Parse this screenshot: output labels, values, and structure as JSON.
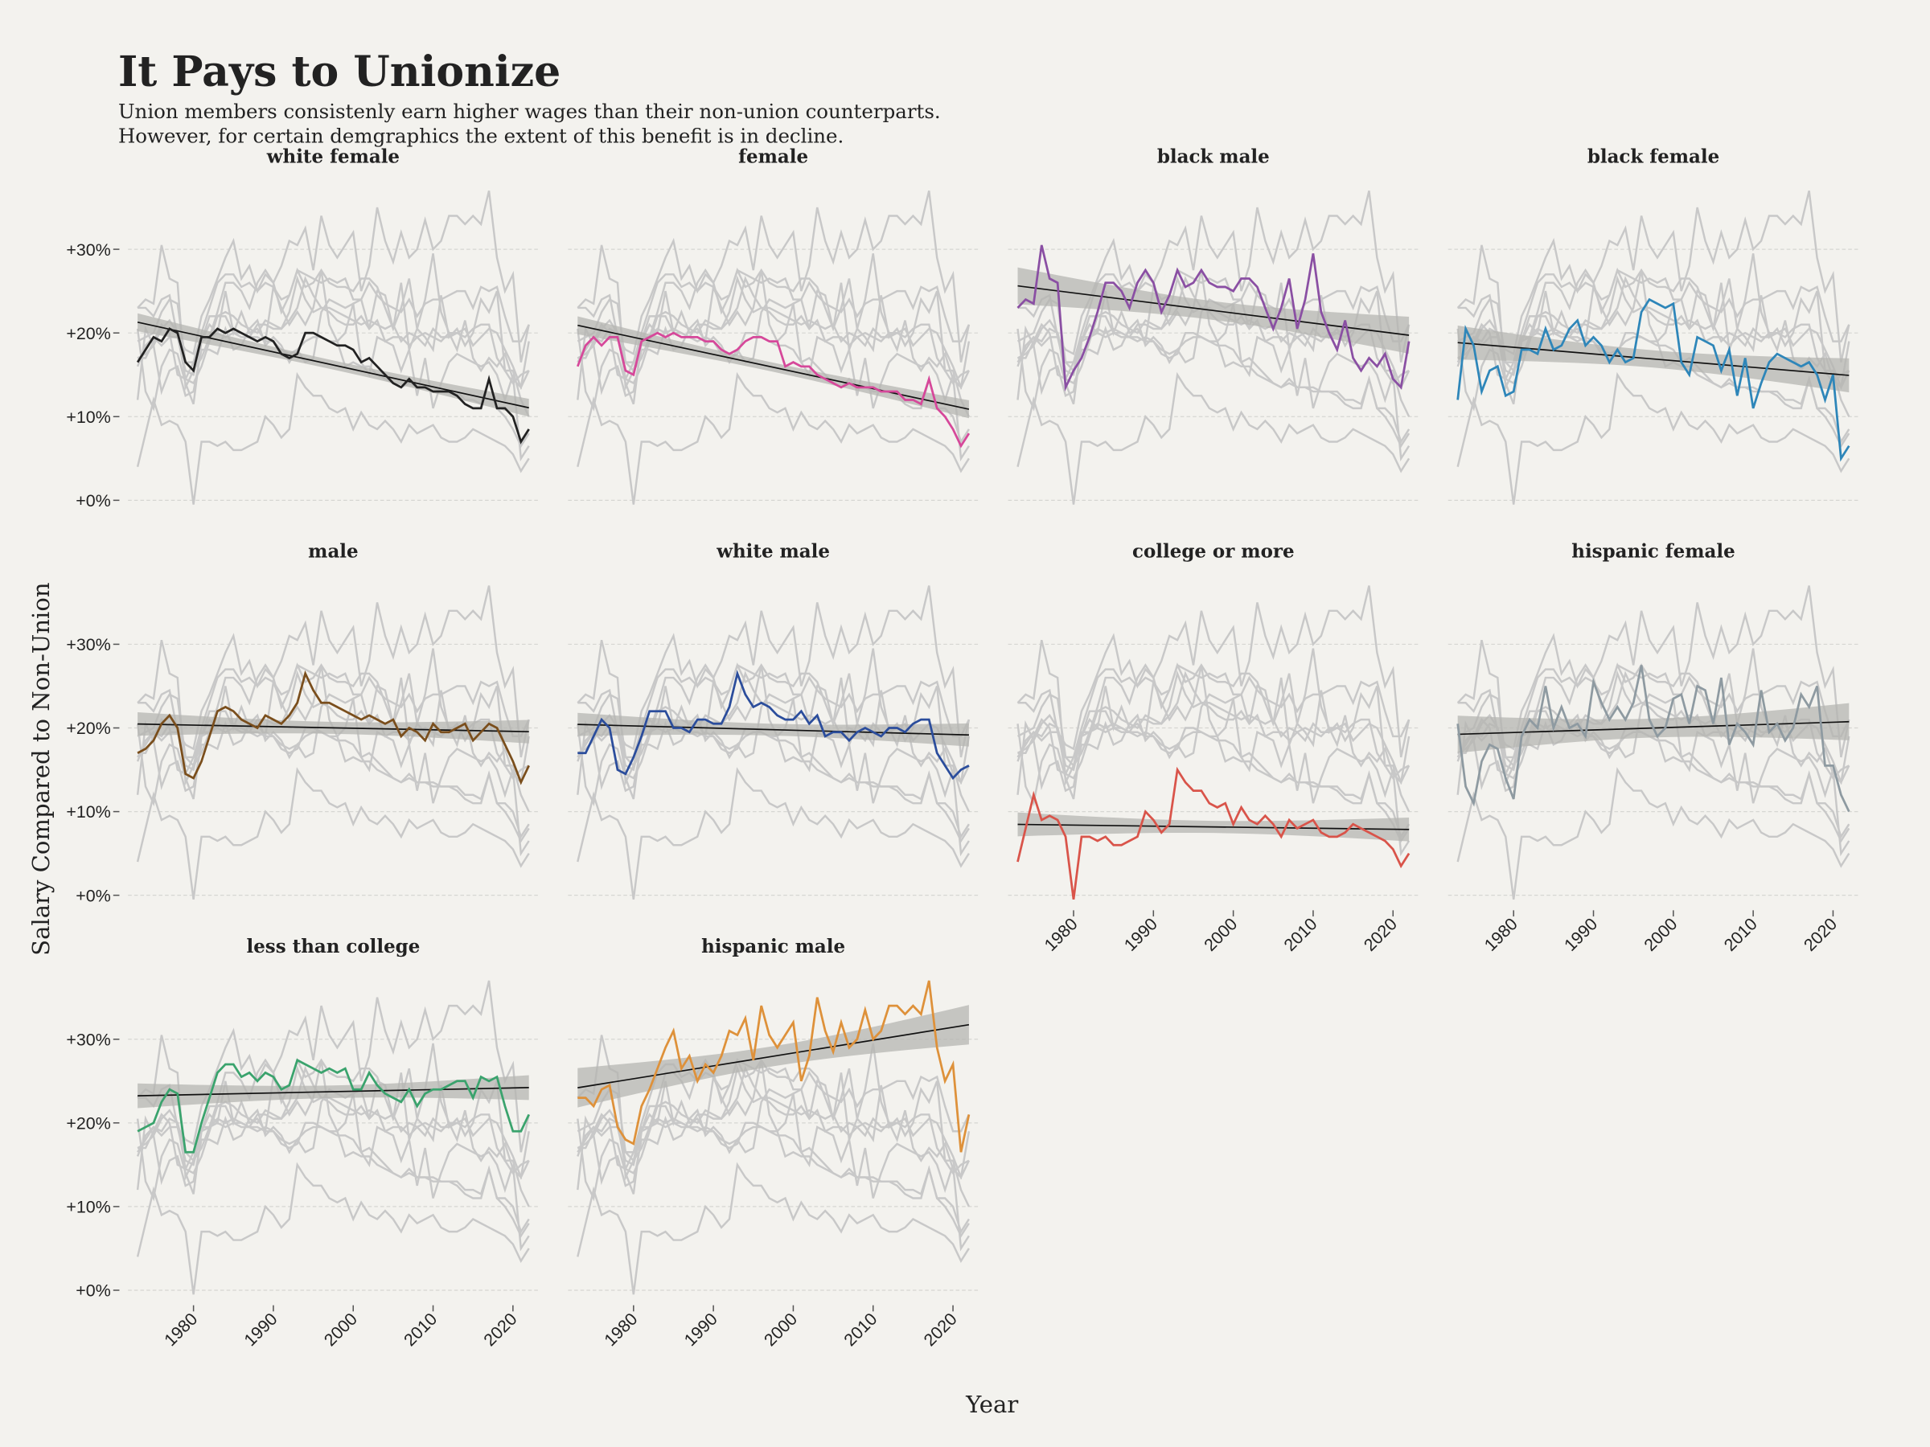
{
  "chart_data": {
    "type": "line",
    "title": "It Pays to Unionize",
    "subtitle": [
      "Union members consistenly earn higher wages than their non-union counterparts.",
      "However, for certain demgraphics the extent of this benefit is in decline."
    ],
    "x_label": "Year",
    "y_label": "Salary Compared to Non-Union",
    "facets": true,
    "trend": true,
    "background_color": "#c8c8c8",
    "x": [
      1973,
      1974,
      1975,
      1976,
      1977,
      1978,
      1979,
      1980,
      1981,
      1982,
      1983,
      1984,
      1985,
      1986,
      1987,
      1988,
      1989,
      1990,
      1991,
      1992,
      1993,
      1994,
      1995,
      1996,
      1997,
      1998,
      1999,
      2000,
      2001,
      2002,
      2003,
      2004,
      2005,
      2006,
      2007,
      2008,
      2009,
      2010,
      2011,
      2012,
      2013,
      2014,
      2015,
      2016,
      2017,
      2018,
      2019,
      2020,
      2021,
      2022
    ],
    "xlim": [
      1971.8,
      2023.2
    ],
    "xticks": [
      1980,
      1990,
      2000,
      2010,
      2020
    ],
    "ylim": [
      -1.5,
      38
    ],
    "yticks": [
      {
        "value": 0,
        "label": "+0%"
      },
      {
        "value": 10,
        "label": "+10%"
      },
      {
        "value": 20,
        "label": "+20%"
      },
      {
        "value": 30,
        "label": "+30%"
      }
    ],
    "grid": true,
    "series": [
      {
        "name": "white female",
        "color": "#222222",
        "values": [
          16.5,
          18,
          19.5,
          19,
          20.5,
          20,
          16.5,
          15.5,
          19.5,
          19.5,
          20.5,
          20,
          20.5,
          20,
          19.5,
          19,
          19.5,
          19,
          17.5,
          17,
          17.5,
          20,
          20,
          19.5,
          19,
          18.5,
          18.5,
          18,
          16.5,
          17,
          16,
          15,
          14,
          13.5,
          14.5,
          13.5,
          13.5,
          13,
          13,
          13,
          12.5,
          11.5,
          11,
          11,
          14.5,
          11,
          11,
          10,
          7,
          8.5
        ]
      },
      {
        "name": "female",
        "color": "#d6489a",
        "values": [
          16,
          18.5,
          19.5,
          18.5,
          19.5,
          19.5,
          15.5,
          15,
          19,
          19.5,
          20,
          19.5,
          20,
          19.5,
          19.5,
          19.5,
          19,
          19,
          18,
          17.5,
          18,
          19,
          19.5,
          19.5,
          19,
          19,
          16,
          16.5,
          16,
          16,
          15,
          14.5,
          14,
          13.5,
          14,
          13.5,
          13.5,
          13.5,
          13,
          13,
          13,
          12,
          12,
          11.5,
          14.5,
          11,
          10,
          8.5,
          6.5,
          8
        ]
      },
      {
        "name": "black male",
        "color": "#8a4fa3",
        "values": [
          23,
          24,
          23.5,
          30.5,
          26.5,
          26,
          13.5,
          15.5,
          17,
          19.5,
          22.5,
          26,
          26,
          25,
          23,
          26,
          27.5,
          26,
          22.5,
          24.5,
          27.5,
          25.5,
          26,
          27.5,
          26,
          25.5,
          25.5,
          25,
          26.5,
          26.5,
          25.5,
          23,
          20.5,
          23,
          26.5,
          20.5,
          24,
          29.5,
          22.5,
          20,
          18,
          21.5,
          17,
          15.5,
          17,
          16,
          17.5,
          14.5,
          13.5,
          19
        ]
      },
      {
        "name": "black female",
        "color": "#2e86b9",
        "values": [
          12,
          20.5,
          18.5,
          13,
          15.5,
          16,
          12.5,
          13,
          18,
          18,
          17.5,
          20.5,
          18,
          18.5,
          20.5,
          21.5,
          18.5,
          19.5,
          18.5,
          16.5,
          18,
          16.5,
          17,
          22.5,
          24,
          23.5,
          23,
          23.5,
          16.5,
          15,
          19.5,
          19,
          18.5,
          15.5,
          18,
          12.5,
          17,
          11,
          14,
          16.5,
          17.5,
          17,
          16.5,
          16,
          16.5,
          15,
          12,
          15,
          5,
          6.5
        ]
      },
      {
        "name": "male",
        "color": "#7a4e1c",
        "values": [
          17,
          17.5,
          18.5,
          20.5,
          21.5,
          20,
          14.5,
          14,
          16,
          19,
          22,
          22.5,
          22,
          21,
          20.5,
          20,
          21.5,
          21,
          20.5,
          21.5,
          23,
          26.5,
          24.5,
          23,
          23,
          22.5,
          22,
          21.5,
          21,
          21.5,
          21,
          20.5,
          21,
          19,
          20,
          19.5,
          18.5,
          20.5,
          19.5,
          19.5,
          20,
          20.5,
          18.5,
          19.5,
          20.5,
          20,
          18,
          16,
          13.5,
          15.5
        ]
      },
      {
        "name": "white male",
        "color": "#2b4d9c",
        "values": [
          17,
          17,
          19,
          21,
          20,
          15,
          14.5,
          16.5,
          19,
          22,
          22,
          22,
          20,
          20,
          19.5,
          21,
          21,
          20.5,
          20.5,
          22.5,
          26.5,
          24,
          22.5,
          23,
          22.5,
          21.5,
          21,
          21,
          22,
          20.5,
          21.5,
          19,
          19.5,
          19.5,
          18.5,
          19.5,
          20,
          19.5,
          19,
          20,
          20,
          19.5,
          20.5,
          21,
          21,
          17,
          15.5,
          14,
          15,
          15.5
        ]
      },
      {
        "name": "college or more",
        "color": "#d9544a",
        "values": [
          4,
          8,
          12,
          9,
          9.5,
          9,
          7,
          -0.5,
          7,
          7,
          6.5,
          7,
          6,
          6,
          6.5,
          7,
          10,
          9,
          7.5,
          8.5,
          15,
          13.5,
          12.5,
          12.5,
          11,
          10.5,
          11,
          8.5,
          10.5,
          9,
          8.5,
          9.5,
          8.5,
          7,
          9,
          8,
          8.5,
          9,
          7.5,
          7,
          7,
          7.5,
          8.5,
          8,
          7.5,
          7,
          6.5,
          5.5,
          3.5,
          5
        ]
      },
      {
        "name": "hispanic female",
        "color": "#8e9aa1",
        "values": [
          20.5,
          13,
          11,
          16,
          18,
          17.5,
          14,
          11.5,
          19,
          21,
          20,
          25,
          20,
          22.5,
          20,
          20.5,
          19,
          25.5,
          23,
          21,
          22.5,
          21,
          23,
          27.5,
          21,
          19,
          20,
          23.5,
          24,
          20.5,
          25,
          24.5,
          20.5,
          26,
          18,
          20.5,
          19.5,
          18,
          24.5,
          19.5,
          20.5,
          18.5,
          20,
          24,
          22.5,
          25,
          15.5,
          15.5,
          12,
          10
        ]
      },
      {
        "name": "less than college",
        "color": "#3aa36d",
        "values": [
          19,
          19.5,
          20,
          22.5,
          24,
          23.5,
          16.5,
          16.5,
          20,
          23,
          26,
          27,
          27,
          25.5,
          26,
          25,
          26,
          25.5,
          24,
          24.5,
          27.5,
          27,
          26.5,
          26,
          26.5,
          26,
          26.5,
          24,
          24,
          26,
          24.5,
          23.5,
          23,
          22.5,
          24,
          22,
          23.5,
          24,
          24,
          24.5,
          25,
          25,
          23,
          25.5,
          25,
          25.5,
          22,
          19,
          19,
          21
        ]
      },
      {
        "name": "hispanic male",
        "color": "#de913a",
        "values": [
          23,
          23,
          22,
          24,
          24.5,
          19.5,
          18,
          17.5,
          22,
          24,
          26.5,
          29,
          31,
          26.5,
          28,
          25,
          27,
          26,
          28,
          31,
          30.5,
          32.5,
          27.5,
          34,
          30.5,
          29,
          30.5,
          32,
          25,
          28,
          35,
          31,
          28.5,
          32,
          29,
          30,
          33.5,
          30,
          31,
          34,
          34,
          33,
          34,
          33,
          37,
          29,
          25,
          27,
          16.5,
          21
        ]
      }
    ]
  }
}
